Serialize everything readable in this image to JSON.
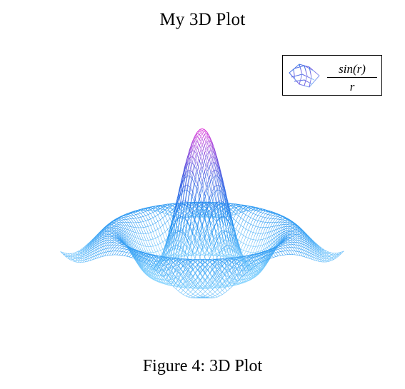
{
  "chart_data": {
    "type": "surface-3d-wireframe",
    "title": "My 3D Plot",
    "legend": {
      "numerator": "sin(r)",
      "denominator": "r",
      "placement": "top-right"
    },
    "function": "sin(r)/r",
    "colormap": [
      "#8fd8ff",
      "#1e8ff0",
      "#3f5ce0",
      "#e23bd8"
    ],
    "axes_visible": false,
    "grid": false
  },
  "caption": "Figure 4:  3D Plot"
}
